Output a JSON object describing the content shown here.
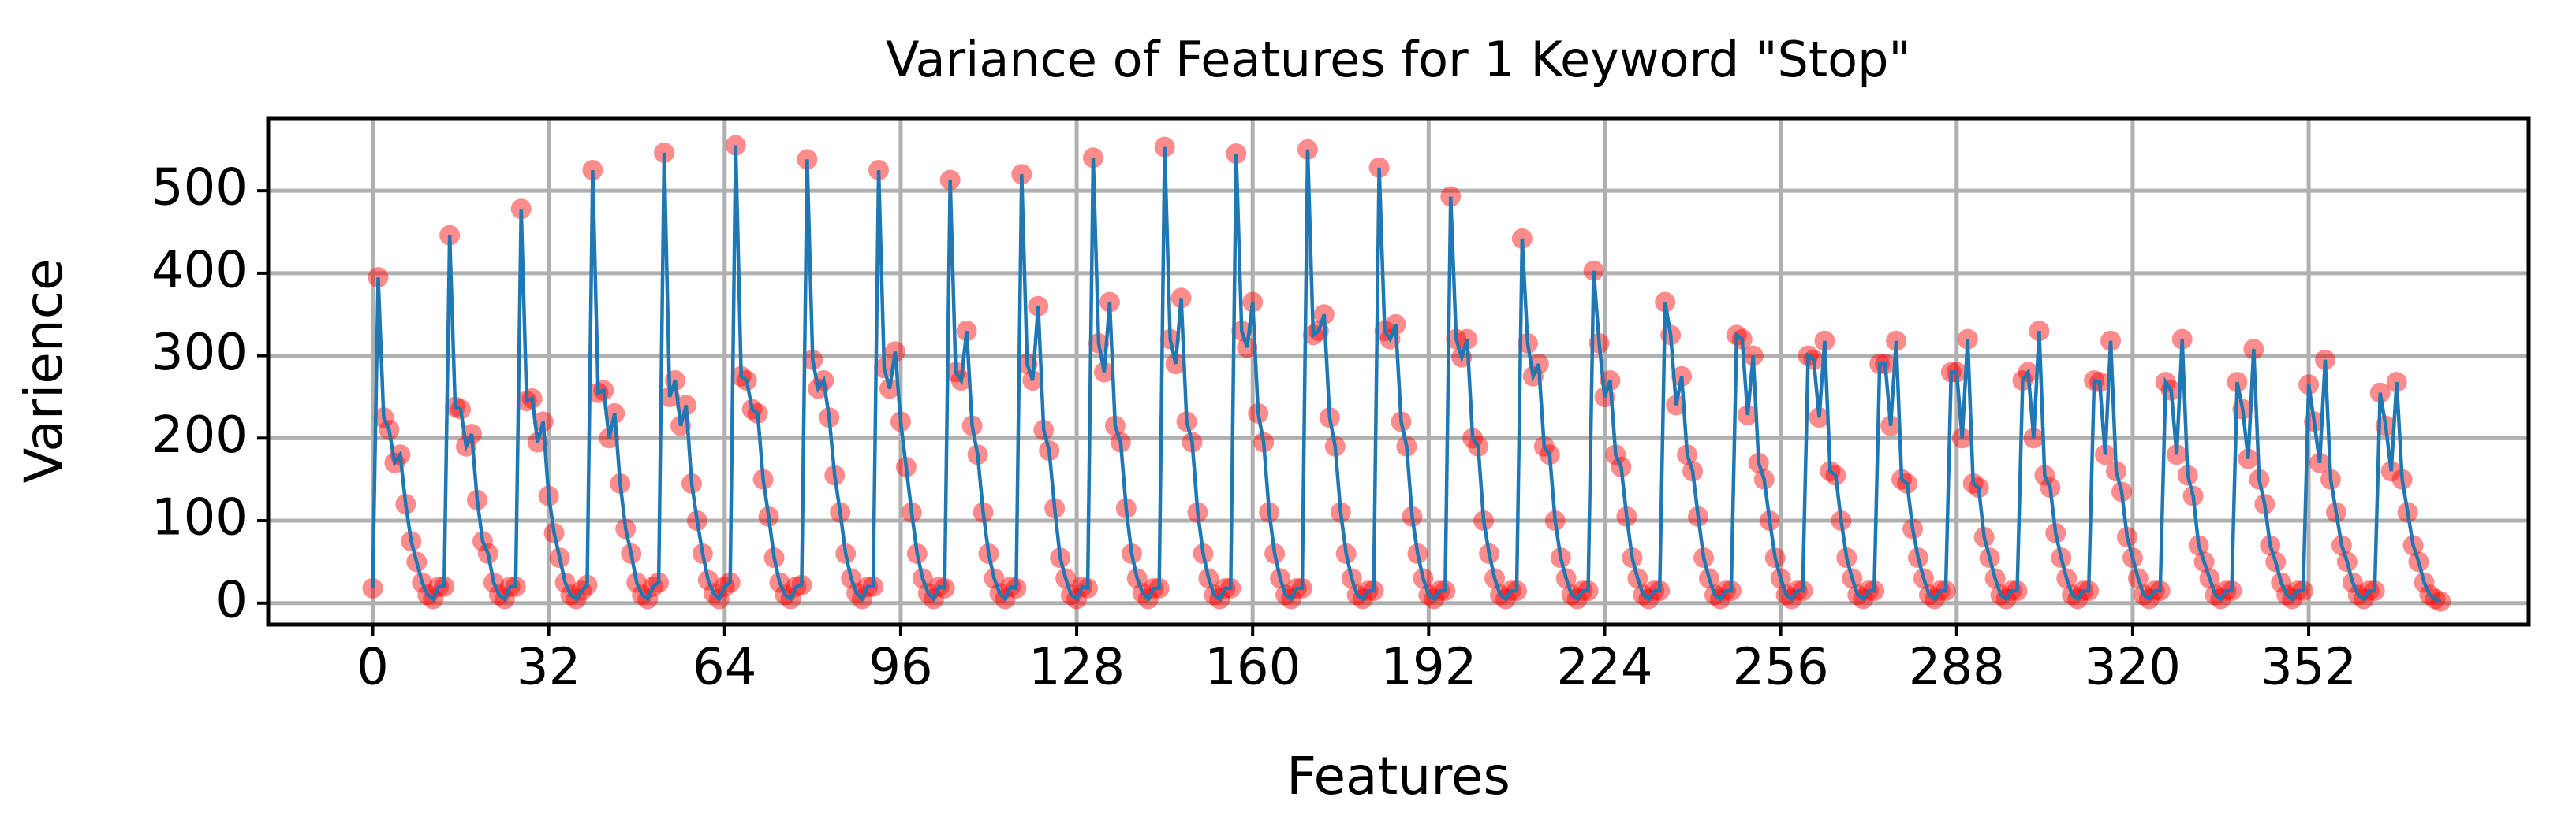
{
  "chart_data": {
    "type": "line",
    "title": "Variance of Features for 1 Keyword \"Stop\"",
    "x_label": "Features",
    "y_label": "Varience",
    "line_color": "#1f77b4",
    "marker_color": "#ff0000",
    "grid": true,
    "xlim": [
      -19,
      392
    ],
    "ylim": [
      -26,
      588
    ],
    "xticks": [
      0,
      32,
      64,
      96,
      128,
      160,
      192,
      224,
      256,
      288,
      320,
      352
    ],
    "yticks": [
      0,
      100,
      200,
      300,
      400,
      500
    ],
    "values": [
      18,
      395,
      225,
      210,
      170,
      180,
      120,
      75,
      50,
      25,
      10,
      5,
      20,
      20,
      446,
      238,
      235,
      190,
      205,
      125,
      75,
      60,
      25,
      10,
      5,
      20,
      20,
      478,
      245,
      248,
      195,
      220,
      130,
      85,
      55,
      25,
      10,
      5,
      15,
      22,
      525,
      255,
      258,
      200,
      230,
      145,
      90,
      60,
      25,
      10,
      5,
      20,
      25,
      546,
      250,
      270,
      215,
      240,
      145,
      100,
      60,
      28,
      12,
      5,
      20,
      25,
      555,
      275,
      270,
      235,
      230,
      150,
      105,
      55,
      25,
      10,
      5,
      20,
      22,
      538,
      295,
      260,
      270,
      225,
      155,
      110,
      60,
      30,
      12,
      5,
      20,
      20,
      525,
      285,
      260,
      305,
      220,
      165,
      110,
      60,
      30,
      12,
      5,
      20,
      18,
      513,
      280,
      270,
      330,
      215,
      180,
      110,
      60,
      30,
      12,
      5,
      20,
      18,
      520,
      290,
      270,
      360,
      210,
      185,
      115,
      55,
      30,
      10,
      5,
      20,
      18,
      540,
      315,
      280,
      365,
      215,
      195,
      115,
      60,
      30,
      12,
      5,
      18,
      18,
      553,
      320,
      290,
      370,
      220,
      195,
      110,
      60,
      30,
      10,
      5,
      18,
      18,
      545,
      330,
      310,
      365,
      230,
      195,
      110,
      60,
      30,
      10,
      5,
      18,
      18,
      550,
      325,
      330,
      350,
      225,
      190,
      110,
      60,
      30,
      10,
      5,
      15,
      15,
      528,
      330,
      320,
      338,
      220,
      190,
      105,
      60,
      30,
      10,
      5,
      15,
      15,
      493,
      320,
      298,
      320,
      200,
      190,
      100,
      60,
      30,
      10,
      5,
      15,
      15,
      442,
      315,
      275,
      290,
      190,
      180,
      100,
      55,
      30,
      10,
      5,
      15,
      15,
      403,
      315,
      250,
      270,
      180,
      165,
      105,
      55,
      30,
      10,
      5,
      15,
      15,
      365,
      325,
      240,
      275,
      180,
      160,
      105,
      55,
      30,
      10,
      5,
      15,
      15,
      325,
      320,
      228,
      300,
      170,
      150,
      100,
      55,
      30,
      10,
      5,
      15,
      15,
      300,
      295,
      225,
      318,
      160,
      155,
      100,
      55,
      30,
      10,
      5,
      15,
      15,
      290,
      290,
      215,
      318,
      150,
      145,
      90,
      55,
      30,
      10,
      5,
      15,
      15,
      280,
      280,
      200,
      320,
      145,
      140,
      80,
      55,
      30,
      10,
      5,
      15,
      15,
      270,
      280,
      200,
      330,
      155,
      140,
      85,
      55,
      30,
      10,
      5,
      15,
      15,
      270,
      268,
      180,
      318,
      160,
      135,
      80,
      55,
      30,
      10,
      5,
      15,
      15,
      268,
      258,
      180,
      320,
      155,
      130,
      70,
      50,
      30,
      10,
      5,
      15,
      15,
      268,
      235,
      175,
      308,
      150,
      120,
      70,
      50,
      25,
      10,
      5,
      15,
      15,
      265,
      220,
      170,
      295,
      150,
      110,
      70,
      50,
      25,
      10,
      5,
      15,
      15,
      255,
      215,
      160,
      268,
      150,
      110,
      70,
      50,
      25,
      10,
      5,
      2
    ]
  }
}
